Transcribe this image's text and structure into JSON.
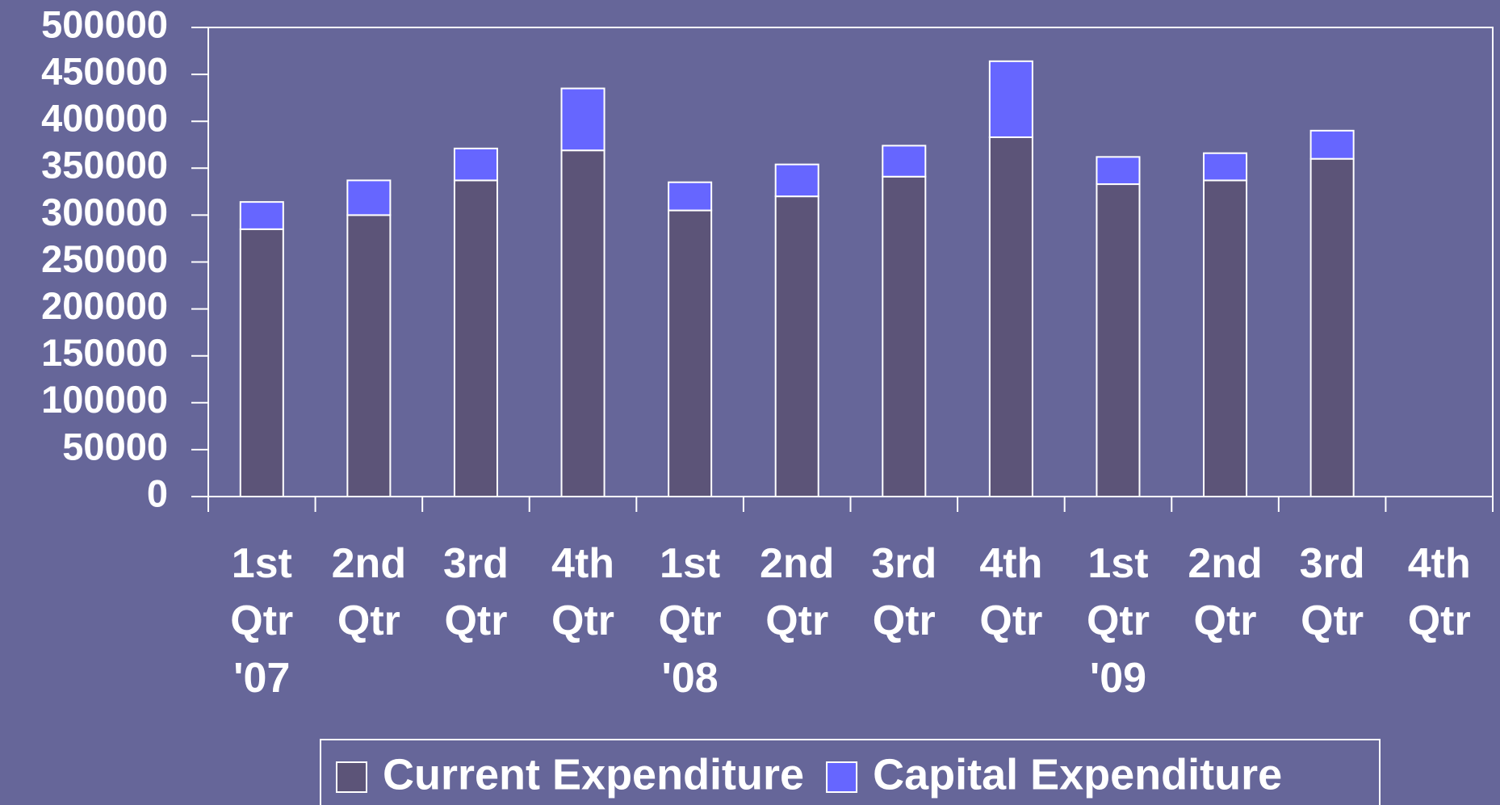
{
  "chart_data": {
    "type": "stacked_bar",
    "categories": [
      "1st Qtr '07",
      "2nd Qtr",
      "3rd Qtr",
      "4th Qtr",
      "1st Qtr '08",
      "2nd Qtr",
      "3rd Qtr",
      "4th Qtr",
      "1st Qtr '09",
      "2nd Qtr",
      "3rd Qtr",
      "4th Qtr"
    ],
    "series": [
      {
        "name": "Current Expenditure",
        "color": "#5c5478",
        "values": [
          285000,
          300000,
          337000,
          369000,
          305000,
          320000,
          341000,
          383000,
          333000,
          337000,
          360000,
          null
        ]
      },
      {
        "name": "Capital Expenditure",
        "color": "#6666ff",
        "values": [
          29000,
          37000,
          34000,
          66000,
          30000,
          34000,
          33000,
          81000,
          29000,
          29000,
          30000,
          null
        ]
      }
    ],
    "ylim": [
      0,
      500000
    ],
    "yticks": [
      0,
      50000,
      100000,
      150000,
      200000,
      250000,
      300000,
      350000,
      400000,
      450000,
      500000
    ],
    "grid": false,
    "legend": "bottom"
  }
}
